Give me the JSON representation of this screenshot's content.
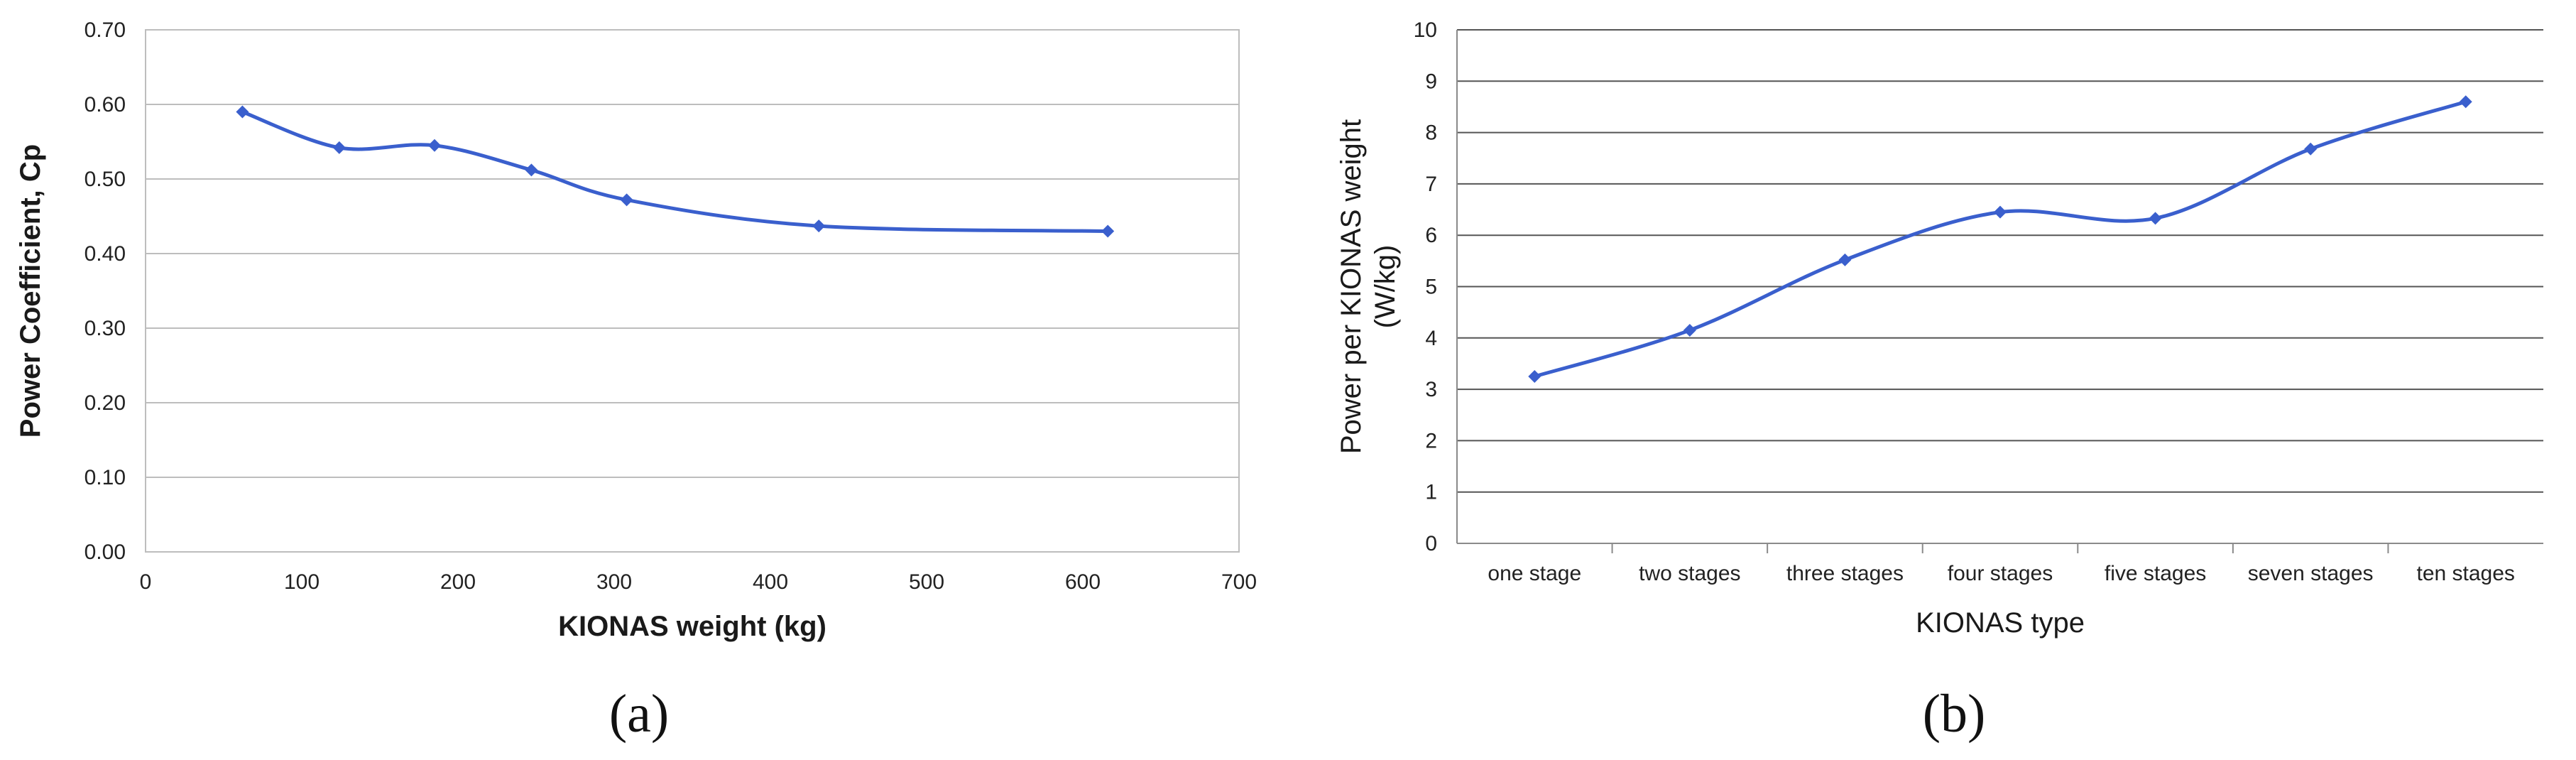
{
  "colors": {
    "series": "#3a5fcd",
    "grid": "#bdbdbd",
    "frame": "#bdbdbd"
  },
  "panels": {
    "a": "(a)",
    "b": "(b)"
  },
  "chart_data": [
    {
      "type": "line",
      "xlabel": "KIONAS weight (kg)",
      "ylabel": "Power Coefficient, Cp",
      "xlim": [
        0,
        700
      ],
      "ylim": [
        0,
        0.7
      ],
      "xticks": [
        "0",
        "100",
        "200",
        "300",
        "400",
        "500",
        "600",
        "700"
      ],
      "yticks": [
        "0.00",
        "0.10",
        "0.20",
        "0.30",
        "0.40",
        "0.50",
        "0.60",
        "0.70"
      ],
      "x": [
        62,
        124,
        185,
        247,
        308,
        431,
        616
      ],
      "y": [
        0.59,
        0.542,
        0.545,
        0.512,
        0.472,
        0.437,
        0.43
      ],
      "smooth": true,
      "grid": true,
      "marker": "diamond"
    },
    {
      "type": "line",
      "xlabel": "KIONAS type",
      "ylabel": "Power per KIONAS weight (W/kg)",
      "ylabel_lines": [
        "Power per KIONAS weight",
        "(W/kg)"
      ],
      "ylim": [
        0,
        10
      ],
      "yticks": [
        "0",
        "1",
        "2",
        "3",
        "4",
        "5",
        "6",
        "7",
        "8",
        "9",
        "10"
      ],
      "categories": [
        "one stage",
        "two stages",
        "three stages",
        "four stages",
        "five stages",
        "seven stages",
        "ten stages"
      ],
      "values": [
        3.25,
        4.15,
        5.52,
        6.45,
        6.33,
        7.68,
        8.6
      ],
      "smooth": true,
      "grid": true,
      "marker": "diamond"
    }
  ]
}
